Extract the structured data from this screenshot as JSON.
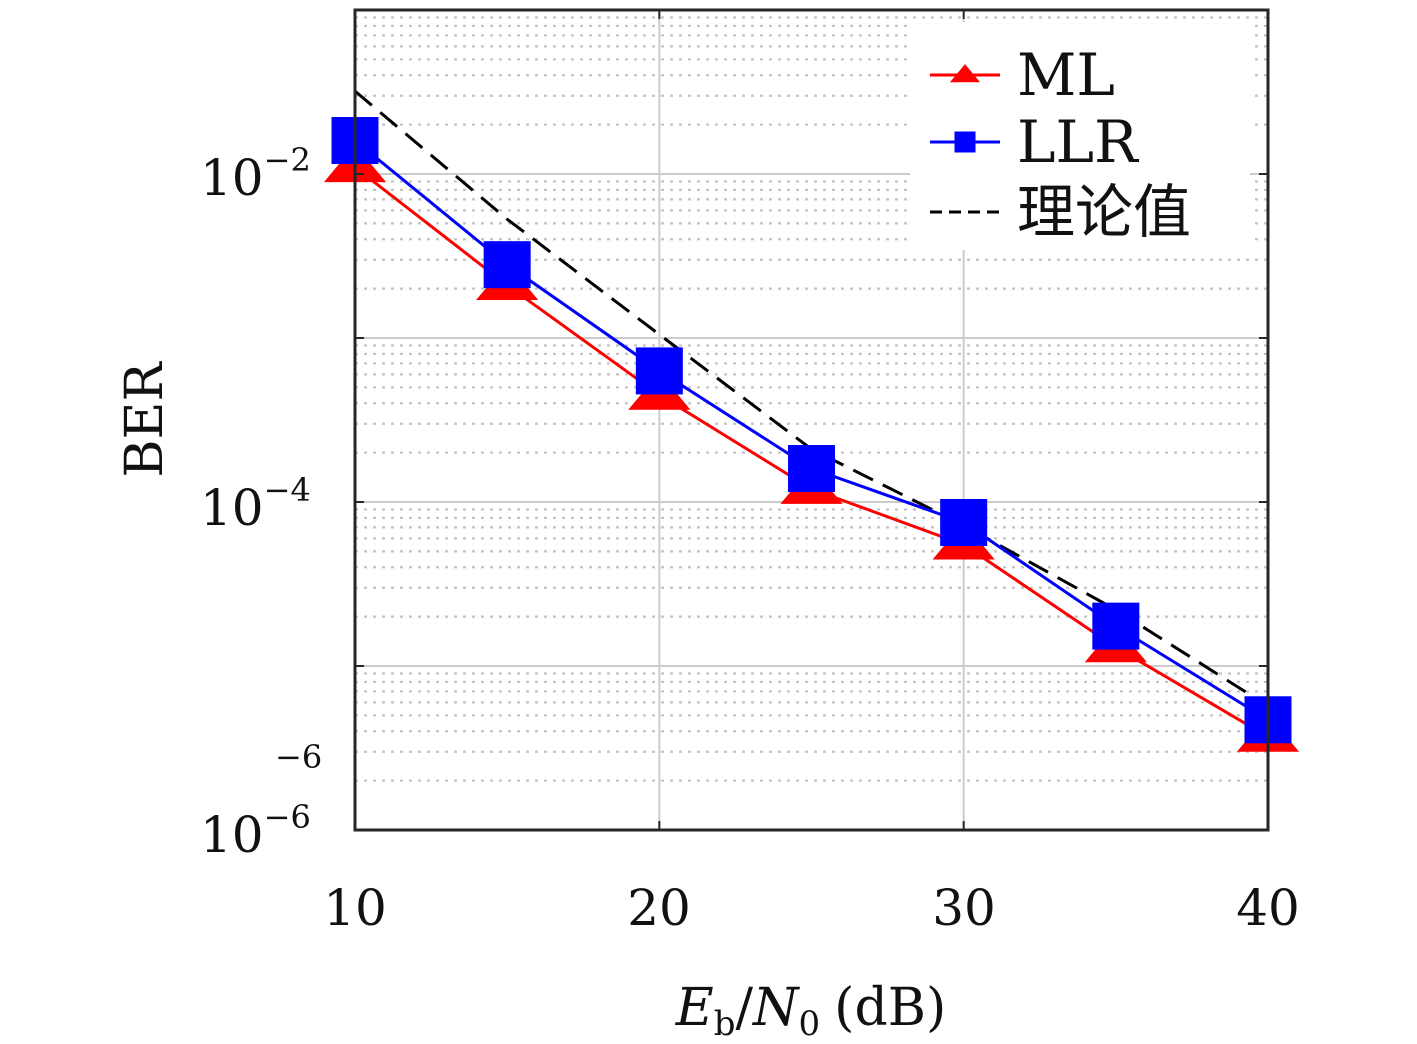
{
  "chart_data": {
    "type": "line",
    "xlabel": "E_b/N_0 (dB)",
    "xlabel_parts": {
      "main1": "E",
      "sub1": "b",
      "slash": "/",
      "main2": "N",
      "sub2": "0",
      "unit": "(dB)"
    },
    "ylabel": "BER",
    "x_ticks": [
      "10",
      "20",
      "30",
      "40"
    ],
    "y_ticks": [
      {
        "base": "10",
        "exp": "−2"
      },
      {
        "base": "10",
        "exp": "−4"
      },
      {
        "base": "10",
        "exp": "−6"
      }
    ],
    "stray_label": "−6",
    "xlim": [
      10,
      40
    ],
    "ylim": [
      1e-06,
      0.1
    ],
    "y_scale": "log",
    "grid": true,
    "legend_position": "top-right",
    "x": [
      10,
      15,
      20,
      25,
      30,
      35,
      40
    ],
    "series": [
      {
        "name": "ML",
        "color": "#ff0000",
        "marker": "triangle",
        "line": "solid",
        "values": [
          0.011,
          0.0021,
          0.00045,
          0.00012,
          5.5e-05,
          1.3e-05,
          3.7e-06
        ]
      },
      {
        "name": "LLR",
        "color": "#0000ff",
        "marker": "square",
        "line": "solid",
        "values": [
          0.016,
          0.0028,
          0.00063,
          0.00016,
          7.5e-05,
          1.75e-05,
          4.7e-06
        ]
      },
      {
        "name": "理论值",
        "color": "#000000",
        "marker": "none",
        "line": "dashed",
        "values": [
          0.032,
          0.0053,
          0.00105,
          0.00021,
          7.2e-05,
          2.2e-05,
          5.7e-06
        ]
      }
    ]
  }
}
